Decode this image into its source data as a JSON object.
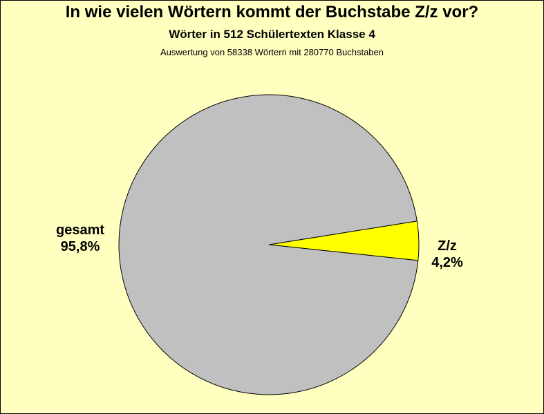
{
  "chart_data": {
    "type": "pie",
    "title": "In wie vielen Wörtern kommt der Buchstabe Z/z vor?",
    "subtitle": "Wörter in 512 Schülertexten Klasse 4",
    "note": "Auswertung von 58338 Wörtern mit 280770 Buchstaben",
    "slices": [
      {
        "name": "Z/z",
        "value": 4.2,
        "label_name": "Z/z",
        "label_value": "4,2%",
        "color": "#ffff00"
      },
      {
        "name": "gesamt",
        "value": 95.8,
        "label_name": "gesamt",
        "label_value": "95,8%",
        "color": "#c0c0c0"
      }
    ],
    "legend": "none"
  },
  "colors": {
    "background": "#ffffc0",
    "outline": "#000000"
  }
}
